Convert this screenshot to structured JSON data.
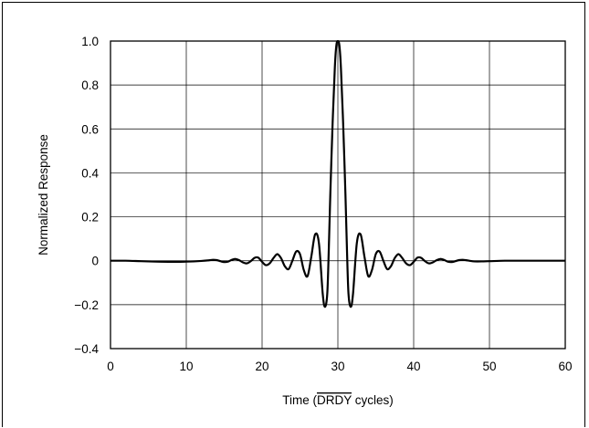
{
  "chart_data": {
    "type": "line",
    "title": "",
    "xlabel_prefix": "Time (",
    "xlabel_overline": "DRDY",
    "xlabel_suffix": " cycles)",
    "ylabel": "Normalized Response",
    "xlim": [
      0,
      60
    ],
    "ylim": [
      -0.4,
      1.0
    ],
    "grid": true,
    "legend": "none",
    "x_ticks": [
      0,
      10,
      20,
      30,
      40,
      50,
      60
    ],
    "x_tick_labels": [
      "0",
      "10",
      "20",
      "30",
      "40",
      "50",
      "60"
    ],
    "y_ticks": [
      1.0,
      0.8,
      0.6,
      0.4,
      0.2,
      0,
      -0.2,
      -0.4
    ],
    "y_tick_labels": [
      "1.0",
      "0.8",
      "0.6",
      "0.4",
      "0.2",
      "0",
      "−0.2",
      "−0.4"
    ],
    "series": [
      {
        "color": "#000000",
        "x": [
          0,
          2,
          4,
          6,
          8,
          10,
          11,
          12,
          13,
          13.5,
          14,
          14.5,
          15,
          15.5,
          16,
          16.5,
          17,
          17.5,
          18,
          18.5,
          19,
          19.5,
          20,
          20.5,
          21,
          21.5,
          22,
          22.5,
          23,
          23.5,
          24,
          24.5,
          25,
          25.5,
          26,
          26.5,
          27,
          27.5,
          28,
          28.3,
          28.6,
          28.8,
          29,
          29.3,
          29.6,
          29.8,
          30,
          30.2,
          30.4,
          30.7,
          31,
          31.2,
          31.4,
          31.7,
          32,
          32.5,
          33,
          33.5,
          34,
          34.5,
          35,
          35.5,
          36,
          36.5,
          37,
          37.5,
          38,
          38.5,
          39,
          39.5,
          40,
          40.5,
          41,
          41.5,
          42,
          42.5,
          43,
          43.5,
          44,
          44.5,
          45,
          45.5,
          46,
          46.5,
          47,
          47.5,
          48,
          49,
          50,
          52,
          54,
          56,
          58,
          60
        ],
        "y": [
          0,
          0,
          -0.002,
          -0.004,
          -0.005,
          -0.004,
          -0.003,
          -0.001,
          0.002,
          0.004,
          0.003,
          -0.002,
          -0.006,
          -0.004,
          0.004,
          0.008,
          0.002,
          -0.008,
          -0.012,
          -0.002,
          0.013,
          0.014,
          -0.005,
          -0.02,
          -0.012,
          0.012,
          0.03,
          0.012,
          -0.025,
          -0.038,
          0,
          0.042,
          0.03,
          -0.042,
          -0.07,
          0.02,
          0.12,
          0.08,
          -0.15,
          -0.21,
          -0.15,
          0.05,
          0.3,
          0.62,
          0.88,
          0.98,
          1.0,
          0.98,
          0.88,
          0.62,
          0.3,
          0.05,
          -0.15,
          -0.21,
          -0.15,
          0.08,
          0.12,
          0.02,
          -0.07,
          -0.042,
          0.03,
          0.042,
          0,
          -0.038,
          -0.025,
          0.012,
          0.03,
          0.012,
          -0.012,
          -0.02,
          -0.005,
          0.014,
          0.013,
          -0.002,
          -0.012,
          -0.008,
          0.002,
          0.008,
          0.004,
          -0.004,
          -0.006,
          -0.002,
          0.003,
          0.004,
          0.002,
          -0.001,
          -0.003,
          -0.003,
          -0.002,
          0,
          0,
          0,
          0,
          0
        ]
      }
    ]
  }
}
